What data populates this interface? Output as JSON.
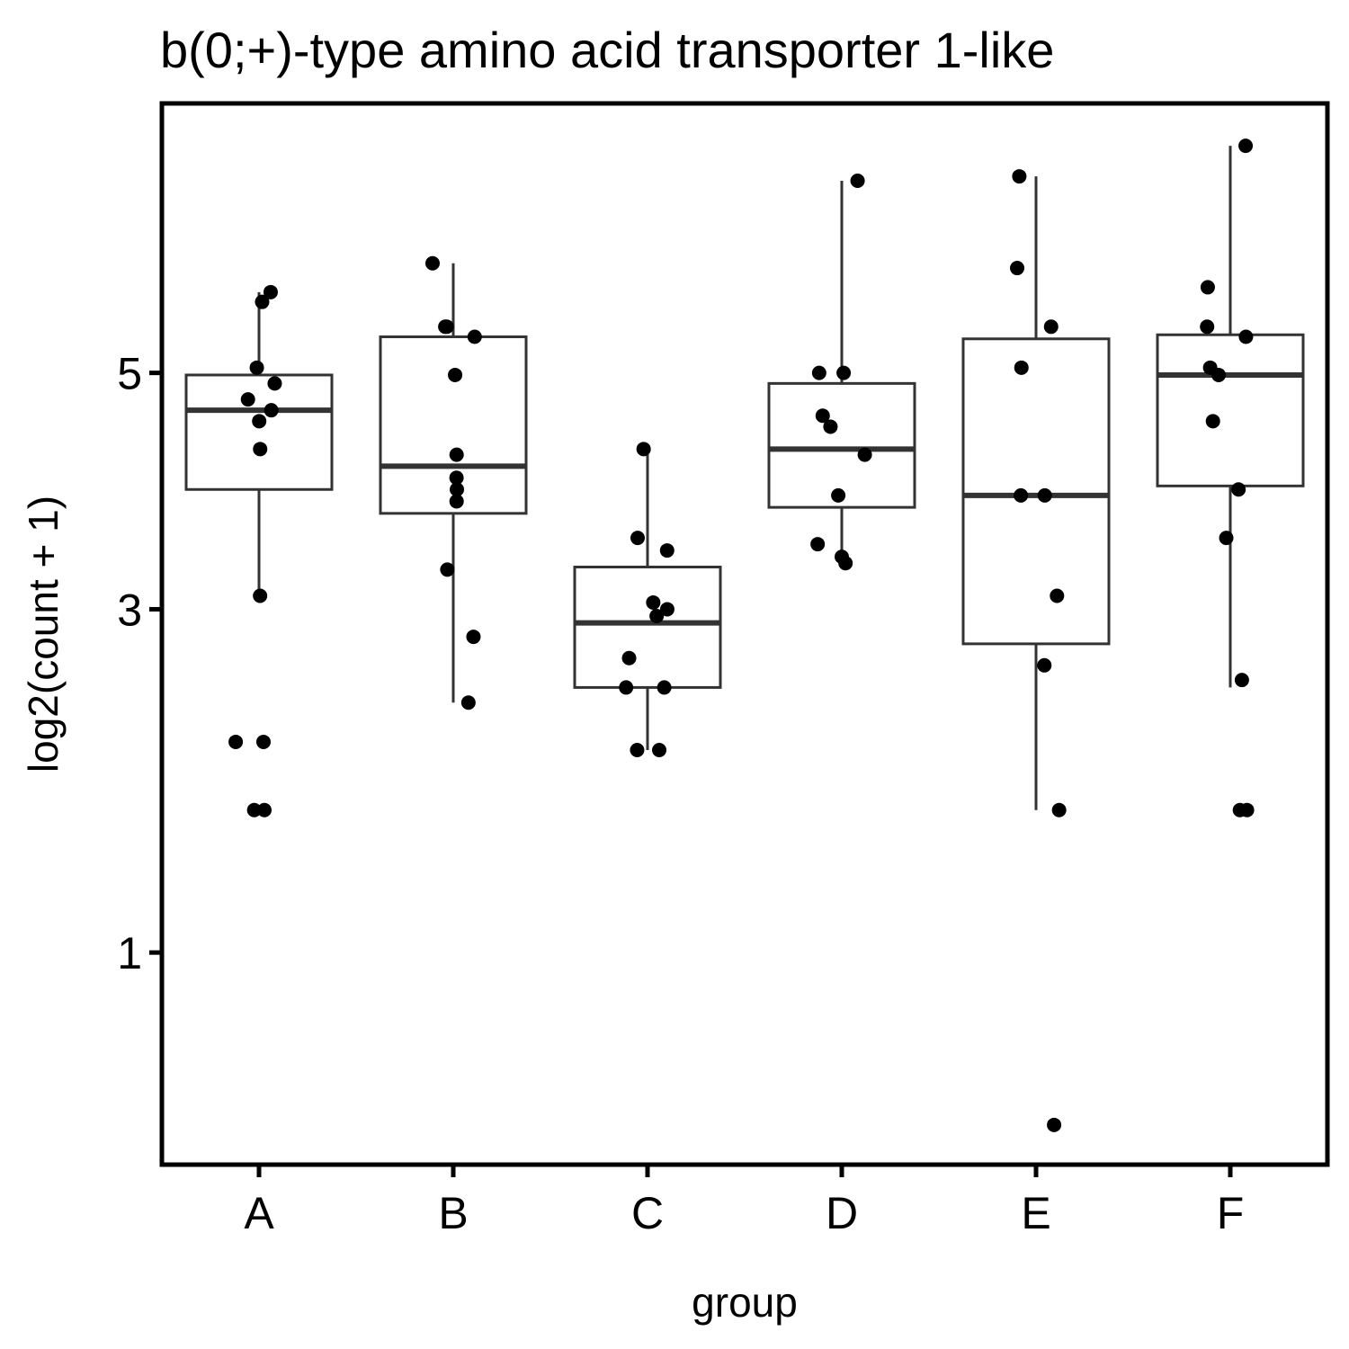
{
  "chart_data": {
    "type": "box",
    "title": "b(0;+)-type amino acid transporter 1-like",
    "xlabel": "group",
    "ylabel": "log2(count + 1)",
    "y_scale": "sqrt",
    "ylim": [
      0.3,
      7.9
    ],
    "y_ticks": [
      1,
      3,
      5
    ],
    "y_tick_labels": [
      "1",
      "3",
      "5"
    ],
    "categories": [
      "A",
      "B",
      "C",
      "D",
      "E",
      "F"
    ],
    "grid": false,
    "legend": "none",
    "boxes": [
      {
        "group": "A",
        "lower_whisker": 3.1,
        "q1": 3.95,
        "median": 4.65,
        "q3": 4.98,
        "upper_whisker": 5.8
      },
      {
        "group": "B",
        "lower_whisker": 2.35,
        "q1": 3.75,
        "median": 4.15,
        "q3": 5.35,
        "upper_whisker": 6.1
      },
      {
        "group": "C",
        "lower_whisker": 2.05,
        "q1": 2.45,
        "median": 2.9,
        "q3": 3.32,
        "upper_whisker": 4.3
      },
      {
        "group": "D",
        "lower_whisker": 3.4,
        "q1": 3.8,
        "median": 4.3,
        "q3": 4.9,
        "upper_whisker": 7.0
      },
      {
        "group": "E",
        "lower_whisker": 1.7,
        "q1": 2.75,
        "median": 3.9,
        "q3": 5.33,
        "upper_whisker": 7.05
      },
      {
        "group": "F",
        "lower_whisker": 2.45,
        "q1": 3.98,
        "median": 4.98,
        "q3": 5.37,
        "upper_whisker": 7.4
      }
    ],
    "points": [
      {
        "group": "A",
        "values": [
          5.8,
          5.7,
          5.05,
          4.75,
          4.9,
          4.65,
          4.55,
          4.3,
          3.1,
          2.1,
          2.1,
          1.7,
          1.7
        ]
      },
      {
        "group": "B",
        "values": [
          6.1,
          5.45,
          5.45,
          5.35,
          4.98,
          4.25,
          4.05,
          3.95,
          3.85,
          3.3,
          2.8,
          2.35
        ]
      },
      {
        "group": "C",
        "values": [
          4.3,
          3.55,
          3.45,
          3.05,
          3.0,
          2.95,
          2.65,
          2.45,
          2.45,
          2.05,
          2.05
        ]
      },
      {
        "group": "D",
        "values": [
          7.0,
          5.0,
          5.0,
          4.6,
          4.5,
          4.25,
          3.9,
          3.5,
          3.4,
          3.35
        ]
      },
      {
        "group": "E",
        "values": [
          7.05,
          6.05,
          5.45,
          5.05,
          3.9,
          3.9,
          3.1,
          2.6,
          1.7,
          0.4
        ]
      },
      {
        "group": "F",
        "values": [
          7.4,
          5.85,
          5.45,
          5.35,
          5.05,
          4.98,
          4.55,
          3.95,
          3.55,
          2.5,
          1.7,
          1.7
        ]
      }
    ]
  }
}
